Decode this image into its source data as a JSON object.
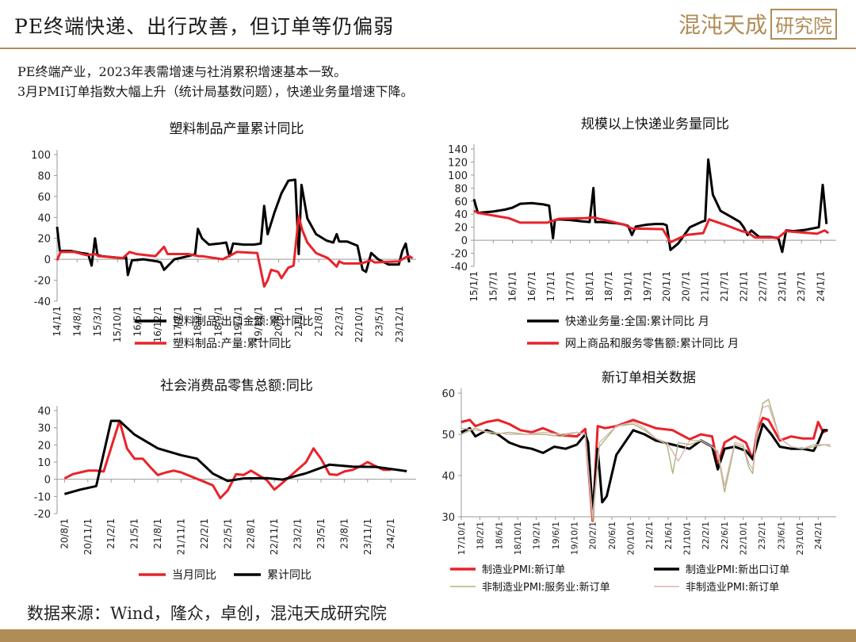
{
  "header": {
    "title": "PE终端快递、出行改善，但订单等仍偏弱",
    "logo_text": "混沌天成",
    "logo_box_text": "研究院"
  },
  "intro": {
    "line1": "PE终端产业，2023年表需增速与社消累积增速基本一致。",
    "line2": "3月PMI订单指数大幅上升（统计局基数问题），快递业务量增速下降。"
  },
  "footer": {
    "source": "数据来源：Wind，隆众，卓创，混沌天成研究院"
  },
  "colors": {
    "black": "#000000",
    "red": "#e8232a",
    "olive": "#a8b878",
    "pink": "#dcb4b4",
    "accent": "#b08d57"
  },
  "chart_data": [
    {
      "id": "plastics",
      "type": "line",
      "title": "塑料制品产量累计同比",
      "ylim": [
        -40,
        100
      ],
      "yticks": [
        -40,
        -20,
        0,
        20,
        40,
        60,
        80,
        100
      ],
      "xlim": [
        2014.0,
        2024.4
      ],
      "x_tick_labels": [
        "14/1/1",
        "14/8/1",
        "15/3/1",
        "15/10/1",
        "16/5/1",
        "16/12/1",
        "17/7/1",
        "18/2/1",
        "18/9/1",
        "19/4/1",
        "19/11/1",
        "20/6/1",
        "21/1/1",
        "21/8/1",
        "22/3/1",
        "22/10/1",
        "23/5/1",
        "23/12/1"
      ],
      "x_tick_values": [
        2014.0,
        2014.58,
        2015.17,
        2015.75,
        2016.33,
        2016.92,
        2017.5,
        2018.08,
        2018.67,
        2019.25,
        2019.83,
        2020.42,
        2021.0,
        2021.58,
        2022.17,
        2022.75,
        2023.33,
        2023.92
      ],
      "series": [
        {
          "name": "塑料制品:出口金额:累计同比",
          "color": "#000000",
          "x": [
            2014.0,
            2014.08,
            2014.17,
            2014.4,
            2014.7,
            2014.9,
            2015.0,
            2015.1,
            2015.17,
            2015.3,
            2015.6,
            2015.9,
            2016.0,
            2016.05,
            2016.17,
            2016.5,
            2016.9,
            2017.0,
            2017.1,
            2017.4,
            2017.8,
            2018.0,
            2018.08,
            2018.2,
            2018.4,
            2018.7,
            2018.9,
            2019.0,
            2019.1,
            2019.4,
            2019.7,
            2019.9,
            2020.0,
            2020.1,
            2020.3,
            2020.5,
            2020.7,
            2020.9,
            2021.0,
            2021.08,
            2021.25,
            2021.5,
            2021.8,
            2022.0,
            2022.1,
            2022.17,
            2022.4,
            2022.7,
            2022.85,
            2022.95,
            2023.1,
            2023.3,
            2023.6,
            2023.9,
            2024.0,
            2024.1,
            2024.2
          ],
          "values": [
            31,
            8,
            8,
            8,
            6,
            5,
            -6,
            20,
            4,
            3,
            2,
            1,
            2,
            -15,
            -1,
            0,
            -2,
            -3,
            -10,
            0,
            3,
            5,
            29,
            20,
            14,
            15,
            16,
            3,
            15,
            14,
            14,
            15,
            51,
            24,
            45,
            63,
            75,
            76,
            5,
            71,
            39,
            24,
            18,
            16,
            24,
            17,
            17,
            13,
            -10,
            -12,
            6,
            0,
            -5,
            -5,
            8,
            15,
            -3
          ]
        },
        {
          "name": "塑料制品:产量:累计同比",
          "color": "#e8232a",
          "x": [
            2014.0,
            2014.1,
            2014.5,
            2014.85,
            2015.1,
            2015.2,
            2015.9,
            2016.1,
            2016.3,
            2016.85,
            2017.1,
            2017.2,
            2017.8,
            2018.1,
            2018.2,
            2018.8,
            2019.1,
            2019.2,
            2019.8,
            2020.0,
            2020.1,
            2020.2,
            2020.4,
            2020.5,
            2020.7,
            2020.85,
            2021.0,
            2021.1,
            2021.25,
            2021.5,
            2021.85,
            2022.1,
            2022.17,
            2022.3,
            2022.8,
            2023.1,
            2023.2,
            2023.9,
            2024.1,
            2024.2,
            2024.3
          ],
          "values": [
            -1,
            7,
            7,
            4,
            5,
            3,
            1,
            7,
            5,
            3,
            12,
            5,
            5,
            3,
            3,
            0,
            5,
            7,
            6,
            -26,
            -20,
            -10,
            -12,
            -18,
            -8,
            -6,
            41,
            28,
            16,
            6,
            1,
            -7,
            -2,
            -4,
            -4,
            -1,
            -3,
            -2,
            2,
            3,
            1
          ]
        }
      ]
    },
    {
      "id": "express",
      "type": "line",
      "title": "规模以上快递业务量同比",
      "ylim": [
        -40,
        140
      ],
      "yticks": [
        -40,
        -20,
        0,
        20,
        40,
        60,
        80,
        100,
        120,
        140
      ],
      "xlim": [
        2015.0,
        2024.4
      ],
      "x_tick_labels": [
        "15/1/1",
        "15/7/1",
        "16/1/1",
        "16/7/1",
        "17/1/1",
        "17/7/1",
        "18/1/1",
        "18/7/1",
        "19/1/1",
        "19/7/1",
        "20/1/1",
        "20/7/1",
        "21/1/1",
        "21/7/1",
        "22/1/1",
        "22/7/1",
        "23/1/1",
        "23/7/1",
        "24/1/1"
      ],
      "x_tick_values": [
        2015.0,
        2015.5,
        2016.0,
        2016.5,
        2017.0,
        2017.5,
        2018.0,
        2018.5,
        2019.0,
        2019.5,
        2020.0,
        2020.5,
        2021.0,
        2021.5,
        2022.0,
        2022.5,
        2023.0,
        2023.5,
        2024.0
      ],
      "series": [
        {
          "name": "快递业务量:全国:累计同比 月",
          "color": "#000000",
          "x": [
            2015.0,
            2015.1,
            2015.5,
            2015.8,
            2016.0,
            2016.2,
            2016.5,
            2016.8,
            2016.95,
            2017.05,
            2017.1,
            2017.2,
            2017.5,
            2017.8,
            2018.0,
            2018.1,
            2018.15,
            2018.3,
            2018.7,
            2018.9,
            2019.0,
            2019.1,
            2019.2,
            2019.5,
            2019.7,
            2019.9,
            2020.0,
            2020.1,
            2020.3,
            2020.6,
            2020.9,
            2021.0,
            2021.08,
            2021.2,
            2021.4,
            2021.7,
            2021.9,
            2022.0,
            2022.1,
            2022.2,
            2022.4,
            2022.7,
            2022.9,
            2023.0,
            2023.1,
            2023.3,
            2023.6,
            2023.95,
            2024.05,
            2024.15
          ],
          "values": [
            63,
            42,
            44,
            47,
            50,
            56,
            57,
            55,
            53,
            3,
            31,
            32,
            31,
            29,
            28,
            80,
            28,
            28,
            26,
            24,
            22,
            8,
            21,
            24,
            25,
            25,
            23,
            -15,
            -5,
            20,
            28,
            30,
            124,
            70,
            45,
            35,
            28,
            20,
            8,
            15,
            5,
            5,
            3,
            -18,
            15,
            14,
            16,
            20,
            85,
            25
          ]
        },
        {
          "name": "网上商品和服务零售额:累计同比 月",
          "color": "#e8232a",
          "x": [
            2015.0,
            2015.1,
            2015.5,
            2015.9,
            2016.2,
            2016.9,
            2017.2,
            2017.9,
            2018.1,
            2018.9,
            2019.1,
            2019.9,
            2020.1,
            2020.5,
            2020.95,
            2021.1,
            2021.5,
            2021.95,
            2022.1,
            2022.3,
            2022.9,
            2023.1,
            2023.9,
            2024.1,
            2024.2
          ],
          "values": [
            45,
            42,
            38,
            34,
            27,
            27,
            33,
            34,
            35,
            24,
            18,
            17,
            -3,
            8,
            11,
            32,
            24,
            14,
            12,
            4,
            4,
            14,
            10,
            15,
            11
          ]
        }
      ]
    },
    {
      "id": "retail",
      "type": "line",
      "title": "社会消费品零售总额:同比",
      "ylim": [
        -20,
        40
      ],
      "yticks": [
        -20,
        -10,
        0,
        10,
        20,
        30,
        40
      ],
      "xlim": [
        2020.5,
        2024.35
      ],
      "x_tick_labels": [
        "20/8/1",
        "20/11/1",
        "21/2/1",
        "21/5/1",
        "21/8/1",
        "21/11/1",
        "22/2/1",
        "22/5/1",
        "22/8/1",
        "22/11/1",
        "23/2/1",
        "23/5/1",
        "23/8/1",
        "23/11/1",
        "24/2/1"
      ],
      "x_tick_values": [
        2020.58,
        2020.83,
        2021.08,
        2021.33,
        2021.58,
        2021.83,
        2022.08,
        2022.33,
        2022.58,
        2022.83,
        2023.08,
        2023.33,
        2023.58,
        2023.83,
        2024.08
      ],
      "series": [
        {
          "name": "当月同比",
          "color": "#e8232a",
          "x": [
            2020.58,
            2020.67,
            2020.75,
            2020.83,
            2020.92,
            2021.0,
            2021.17,
            2021.25,
            2021.33,
            2021.42,
            2021.5,
            2021.58,
            2021.67,
            2021.75,
            2021.83,
            2021.92,
            2022.17,
            2022.25,
            2022.33,
            2022.42,
            2022.5,
            2022.58,
            2022.67,
            2022.75,
            2022.83,
            2022.92,
            2023.17,
            2023.25,
            2023.33,
            2023.42,
            2023.5,
            2023.58,
            2023.67,
            2023.75,
            2023.83,
            2023.92,
            2024.0,
            2024.08
          ],
          "values": [
            0.5,
            3,
            4,
            5,
            5,
            4.5,
            34,
            18,
            12,
            12,
            7,
            2.5,
            4,
            5,
            4,
            2,
            -3.5,
            -11,
            -6.5,
            3,
            2.5,
            5,
            2,
            -0.5,
            -6,
            -2,
            10,
            18,
            12,
            3,
            2.5,
            4.5,
            5.5,
            7.5,
            10,
            7.5,
            5.5,
            5.5
          ]
        },
        {
          "name": "累计同比",
          "color": "#000000",
          "x": [
            2020.58,
            2020.75,
            2020.92,
            2021.08,
            2021.17,
            2021.33,
            2021.58,
            2021.83,
            2022.0,
            2022.17,
            2022.33,
            2022.5,
            2022.75,
            2022.92,
            2023.17,
            2023.42,
            2023.67,
            2023.92,
            2024.25
          ],
          "values": [
            -8.6,
            -6,
            -4,
            34,
            34,
            26,
            18,
            14,
            12,
            3.3,
            -1,
            0.5,
            0.7,
            -0.2,
            3.5,
            8.5,
            7.3,
            7.2,
            4.7
          ]
        }
      ]
    },
    {
      "id": "pmi",
      "type": "line",
      "title": "新订单相关数据",
      "ylim": [
        30,
        60
      ],
      "yticks": [
        30,
        40,
        50,
        60
      ],
      "xlim": [
        2017.75,
        2024.4
      ],
      "x_tick_labels": [
        "17/10/1",
        "18/2/1",
        "18/6/1",
        "18/10/1",
        "19/2/1",
        "19/6/1",
        "19/10/1",
        "20/2/1",
        "20/6/1",
        "20/10/1",
        "21/2/1",
        "21/6/1",
        "21/10/1",
        "22/2/1",
        "22/6/1",
        "22/10/1",
        "23/2/1",
        "23/6/1",
        "23/10/1",
        "24/2/1"
      ],
      "x_tick_values": [
        2017.75,
        2018.08,
        2018.42,
        2018.75,
        2019.08,
        2019.42,
        2019.75,
        2020.08,
        2020.42,
        2020.75,
        2021.08,
        2021.42,
        2021.75,
        2022.08,
        2022.42,
        2022.75,
        2023.08,
        2023.42,
        2023.75,
        2024.08
      ],
      "series": [
        {
          "name": "制造业PMI:新订单",
          "color": "#e8232a",
          "x": [
            2017.75,
            2017.9,
            2018.0,
            2018.2,
            2018.4,
            2018.6,
            2018.8,
            2019.0,
            2019.2,
            2019.5,
            2019.8,
            2019.95,
            2020.08,
            2020.17,
            2020.3,
            2020.5,
            2020.8,
            2021.0,
            2021.2,
            2021.5,
            2021.8,
            2022.0,
            2022.2,
            2022.3,
            2022.42,
            2022.6,
            2022.8,
            2022.92,
            2023.0,
            2023.1,
            2023.2,
            2023.4,
            2023.6,
            2023.8,
            2024.0,
            2024.08,
            2024.17,
            2024.25
          ],
          "values": [
            53,
            53.5,
            52,
            53,
            53.5,
            52.5,
            51,
            50.5,
            51.5,
            49.8,
            49.5,
            51.3,
            29,
            52,
            51.5,
            52,
            53.5,
            52.5,
            51.5,
            51,
            48.8,
            50,
            49.5,
            42.5,
            48,
            49.5,
            48,
            43.9,
            50.9,
            54,
            53.5,
            48.5,
            49.5,
            49,
            49,
            53,
            50.5,
            51
          ]
        },
        {
          "name": "制造业PMI:新出口订单",
          "color": "#000000",
          "x": [
            2017.75,
            2017.9,
            2018.0,
            2018.2,
            2018.4,
            2018.6,
            2018.8,
            2019.0,
            2019.2,
            2019.4,
            2019.6,
            2019.8,
            2019.95,
            2020.0,
            2020.08,
            2020.17,
            2020.25,
            2020.33,
            2020.5,
            2020.8,
            2021.0,
            2021.2,
            2021.5,
            2021.8,
            2022.0,
            2022.2,
            2022.3,
            2022.42,
            2022.6,
            2022.8,
            2022.92,
            2023.1,
            2023.25,
            2023.4,
            2023.6,
            2023.8,
            2024.0,
            2024.08,
            2024.17,
            2024.25
          ],
          "values": [
            50.5,
            51.5,
            49.5,
            51,
            50,
            48,
            47,
            46.5,
            45.5,
            47,
            46.5,
            47.5,
            50,
            48,
            31,
            46.5,
            33.5,
            35,
            45,
            51,
            50,
            48.5,
            47.5,
            46.5,
            48.5,
            47,
            41.5,
            46.5,
            47,
            46,
            44,
            52.5,
            50,
            47,
            46.5,
            46.5,
            46,
            48,
            51,
            51
          ]
        },
        {
          "name": "非制造业PMI:服务业:新订单",
          "color": "#a8b878",
          "x": [
            2017.75,
            2018.0,
            2018.3,
            2018.6,
            2018.9,
            2019.2,
            2019.5,
            2019.8,
            2019.95,
            2020.08,
            2020.2,
            2020.5,
            2020.8,
            2021.0,
            2021.2,
            2021.4,
            2021.5,
            2021.6,
            2021.8,
            2022.0,
            2022.2,
            2022.3,
            2022.42,
            2022.6,
            2022.75,
            2022.85,
            2022.92,
            2023.0,
            2023.1,
            2023.2,
            2023.4,
            2023.6,
            2023.8,
            2024.0,
            2024.2,
            2024.3
          ],
          "values": [
            50,
            51.5,
            50,
            50.5,
            50,
            50,
            49.5,
            50.5,
            50,
            29,
            47,
            52,
            52.5,
            51,
            49,
            47.5,
            40.5,
            48,
            47.5,
            48.5,
            47,
            45.5,
            36,
            47.5,
            47,
            42,
            40.5,
            51,
            57.5,
            58.5,
            49,
            47,
            46.5,
            47,
            47.5,
            47
          ]
        },
        {
          "name": "非制造业PMI:新订单",
          "color": "#dcb4b4",
          "x": [
            2017.75,
            2018.0,
            2018.3,
            2018.6,
            2018.9,
            2019.2,
            2019.5,
            2019.8,
            2019.95,
            2020.08,
            2020.2,
            2020.5,
            2020.8,
            2021.0,
            2021.2,
            2021.4,
            2021.6,
            2021.8,
            2022.0,
            2022.2,
            2022.3,
            2022.42,
            2022.6,
            2022.75,
            2022.85,
            2022.92,
            2023.0,
            2023.1,
            2023.2,
            2023.4,
            2023.6,
            2023.8,
            2024.0,
            2024.2,
            2024.3
          ],
          "values": [
            51.5,
            51,
            50.5,
            50,
            50,
            50.5,
            50,
            50.5,
            50,
            30,
            48,
            52,
            53,
            51.5,
            49,
            48,
            43.5,
            48.5,
            48.5,
            47,
            46,
            37.5,
            48,
            47.5,
            43,
            41.5,
            52,
            56.5,
            57,
            49,
            47,
            46.5,
            47.5,
            47.5,
            47.5
          ]
        }
      ]
    }
  ]
}
